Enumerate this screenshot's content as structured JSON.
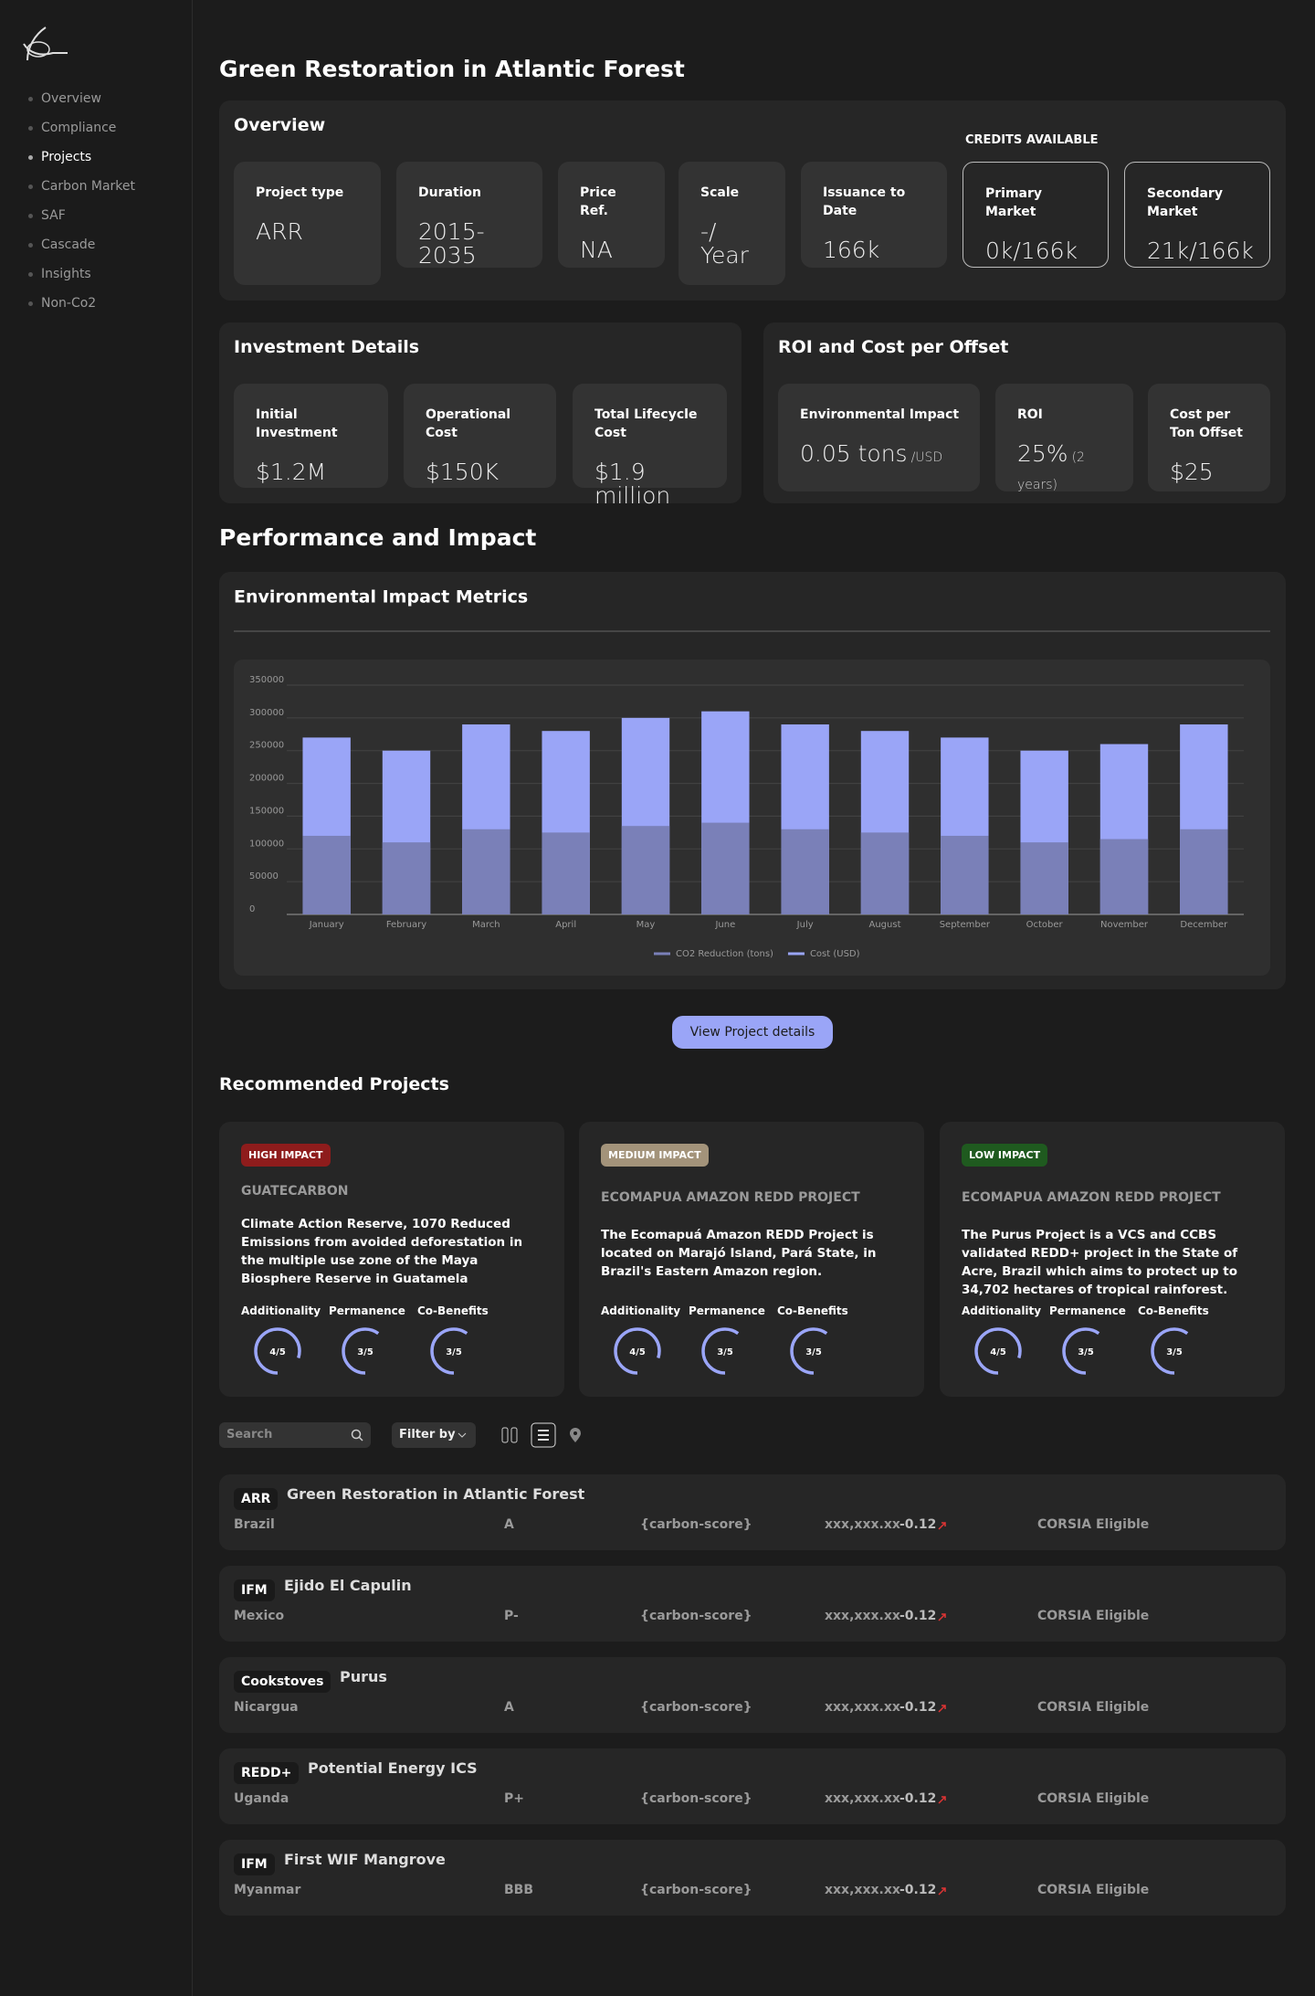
{
  "sidebar": {
    "nav": [
      "Overview",
      "Compliance",
      "Projects",
      "Carbon Market",
      "SAF",
      "Cascade",
      "Insights",
      "Non-Co2"
    ],
    "active": 2
  },
  "page_title": "Green Restoration in Atlantic Forest",
  "overview": {
    "title": "Overview",
    "credits_label": "CREDITS AVAILABLE",
    "cards": [
      {
        "label": "Project type",
        "value": "ARR"
      },
      {
        "label": "Duration",
        "value": "2015-2035"
      },
      {
        "label": "Price Ref.",
        "value": "NA"
      },
      {
        "label": "Scale",
        "value": "-/ Year"
      },
      {
        "label": "Issuance to Date",
        "value": "166k"
      },
      {
        "label": "Primary Market",
        "value": "0k/166k"
      },
      {
        "label": "Secondary Market",
        "value": "21k/166k"
      }
    ]
  },
  "investment": {
    "title": "Investment Details",
    "cards": [
      {
        "label": "Initial Investment",
        "value": "$1.2M"
      },
      {
        "label": "Operational Cost",
        "value": "$150K"
      },
      {
        "label": "Total Lifecycle Cost",
        "value": "$1.9 million"
      }
    ]
  },
  "roi": {
    "title": "ROI and Cost per Offset",
    "cards": [
      {
        "label": "Environmental Impact",
        "value": "0.05 tons",
        "suffix": "/USD"
      },
      {
        "label": "ROI",
        "value": "25%",
        "suffix": "(2 years)"
      },
      {
        "label": "Cost per Ton Offset",
        "value": "$25"
      }
    ]
  },
  "performance_title": "Performance and Impact",
  "chart_data": {
    "type": "bar",
    "title": "Environmental Impact Metrics",
    "categories": [
      "January",
      "February",
      "March",
      "April",
      "May",
      "June",
      "July",
      "August",
      "September",
      "October",
      "November",
      "December"
    ],
    "series": [
      {
        "name": "CO2 Reduction (tons)",
        "color": "#7a80b8",
        "values": [
          120000,
          110000,
          130000,
          125000,
          135000,
          140000,
          130000,
          125000,
          120000,
          110000,
          115000,
          130000
        ]
      },
      {
        "name": "Cost (USD)",
        "color": "#9aa5f7",
        "values": [
          270000,
          250000,
          290000,
          280000,
          300000,
          310000,
          290000,
          280000,
          270000,
          250000,
          260000,
          290000
        ]
      }
    ],
    "ylim": [
      0,
      350000
    ],
    "yticks": [
      0,
      50000,
      100000,
      150000,
      200000,
      250000,
      300000,
      350000
    ],
    "grid": true,
    "legend": "bottom"
  },
  "button": "View Project details",
  "recommended": {
    "title": "Recommended Projects",
    "projects": [
      {
        "badge": "HIGH IMPACT",
        "badge_color": "#8e1c1c",
        "org": "GUATECARBON",
        "description": "Climate Action Reserve, 1070 Reduced Emissions from avoided deforestation in the multiple use zone of the Maya Biosphere Reserve in Guatamela",
        "metrics": [
          {
            "label": "Additionality",
            "score": "4/5"
          },
          {
            "label": "Permanence",
            "score": "3/5"
          },
          {
            "label": "Co-Benefits",
            "score": "3/5"
          }
        ]
      },
      {
        "badge": "MEDIUM IMPACT",
        "badge_color": "#a3937a",
        "org": "ECOMAPUA AMAZON REDD PROJECT",
        "description": "The Ecomapuá Amazon REDD Project is located on Marajó Island, Pará State, in Brazil's Eastern Amazon region.",
        "metrics": [
          {
            "label": "Additionality",
            "score": "4/5"
          },
          {
            "label": "Permanence",
            "score": "3/5"
          },
          {
            "label": "Co-Benefits",
            "score": "3/5"
          }
        ]
      },
      {
        "badge": "LOW IMPACT",
        "badge_color": "#1f5a1f",
        "org": "ECOMAPUA AMAZON REDD PROJECT",
        "description": "The Purus Project is a VCS and CCBS validated REDD+ project in the State of Acre, Brazil which aims to protect up to 34,702 hectares of tropical rainforest.",
        "metrics": [
          {
            "label": "Additionality",
            "score": "4/5"
          },
          {
            "label": "Permanence",
            "score": "3/5"
          },
          {
            "label": "Co-Benefits",
            "score": "3/5"
          }
        ]
      }
    ]
  },
  "toolbar": {
    "search": "Search",
    "filter": "Filter by"
  },
  "list": [
    {
      "type": "ARR",
      "name": "Green Restoration in Atlantic Forest",
      "country": "Brazil",
      "rating": "A",
      "score": "{carbon-score}",
      "price": "xxx,xxx.xx",
      "change": "-0.12",
      "status": "CORSIA Eligible"
    },
    {
      "type": "IFM",
      "name": "Ejido El Capulin",
      "country": "Mexico",
      "rating": "P-",
      "score": "{carbon-score}",
      "price": "xxx,xxx.xx",
      "change": "-0.12",
      "status": "CORSIA Eligible"
    },
    {
      "type": "Cookstoves",
      "name": "Purus",
      "country": "Nicargua",
      "rating": "A",
      "score": "{carbon-score}",
      "price": "xxx,xxx.xx",
      "change": "-0.12",
      "status": "CORSIA Eligible"
    },
    {
      "type": "REDD+",
      "name": "Potential Energy ICS",
      "country": "Uganda",
      "rating": "P+",
      "score": "{carbon-score}",
      "price": "xxx,xxx.xx",
      "change": "-0.12",
      "status": "CORSIA Eligible"
    },
    {
      "type": "IFM",
      "name": "First WIF Mangrove",
      "country": "Myanmar",
      "rating": "BBB",
      "score": "{carbon-score}",
      "price": "xxx,xxx.xx",
      "change": "-0.12",
      "status": "CORSIA Eligible"
    }
  ]
}
